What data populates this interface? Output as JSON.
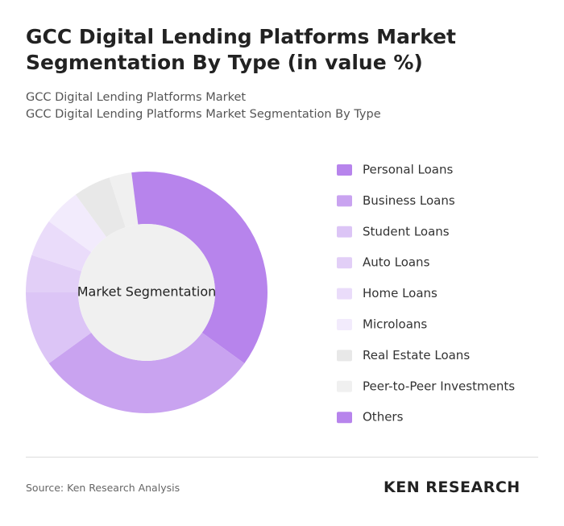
{
  "chart_data": {
    "type": "pie",
    "title": "GCC Digital Lending Platforms Market Segmentation By Type (in value %)",
    "subtitle": [
      "GCC Digital Lending Platforms Market",
      "GCC Digital Lending Platforms Market Segmentation By Type"
    ],
    "center_label": "Market Segmentation",
    "categories": [
      "Personal Loans",
      "Business Loans",
      "Student Loans",
      "Auto Loans",
      "Home Loans",
      "Microloans",
      "Real Estate Loans",
      "Peer-to-Peer Investments",
      "Others"
    ],
    "values": [
      35,
      30,
      10,
      5,
      5,
      5,
      5,
      3,
      2
    ],
    "colors": [
      "#b784ec",
      "#c9a3f0",
      "#dcc5f6",
      "#e2cff7",
      "#eadcfa",
      "#f2ebfc",
      "#e8e8e8",
      "#f0f0f0",
      "#b784ec"
    ],
    "source": "Source: Ken Research Analysis",
    "logo": "KEN RESEARCH"
  }
}
